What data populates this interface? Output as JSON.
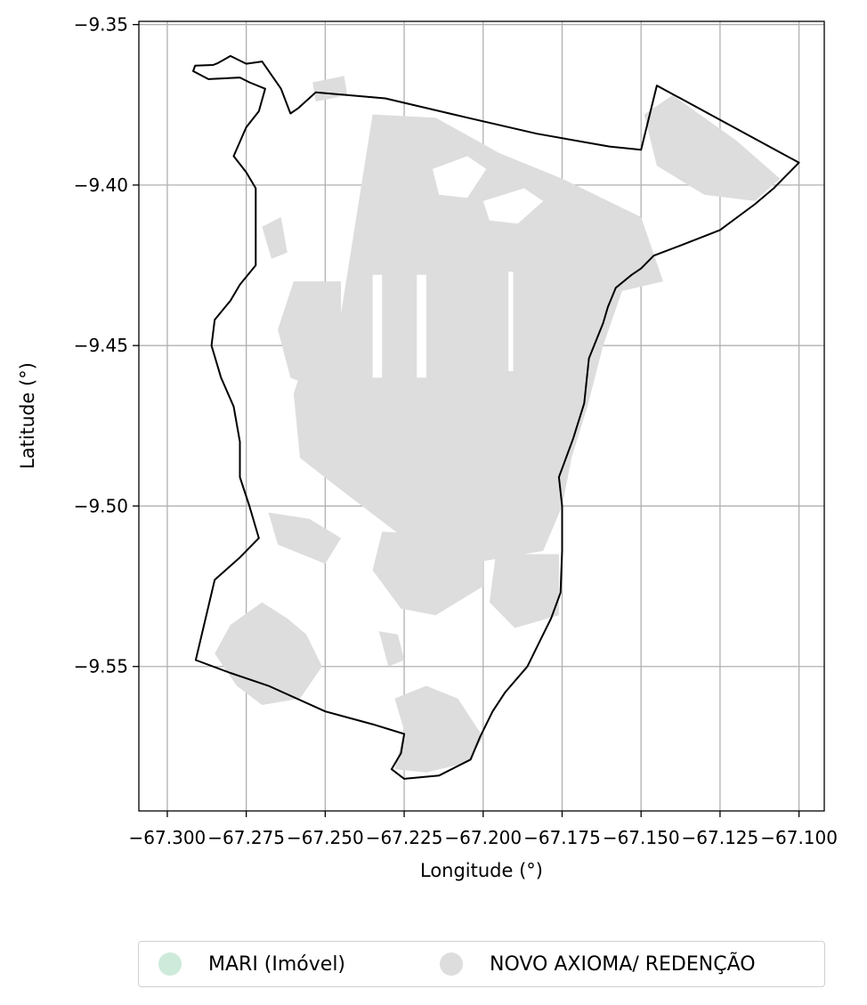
{
  "chart_data": {
    "type": "map",
    "xlabel": "Longitude (°)",
    "ylabel": "Latitude (°)",
    "xlim": [
      -67.309,
      -67.092
    ],
    "ylim": [
      -9.595,
      -9.349
    ],
    "xticks": [
      -67.3,
      -67.275,
      -67.25,
      -67.225,
      -67.2,
      -67.175,
      -67.15,
      -67.125,
      -67.1
    ],
    "xtick_labels": [
      "−67.300",
      "−67.275",
      "−67.250",
      "−67.225",
      "−67.200",
      "−67.175",
      "−67.150",
      "−67.125",
      "−67.100"
    ],
    "yticks": [
      -9.35,
      -9.4,
      -9.45,
      -9.5,
      -9.55
    ],
    "ytick_labels": [
      "−9.35",
      "−9.40",
      "−9.45",
      "−9.50",
      "−9.55"
    ],
    "grid": true,
    "legend_position": "bottom-center",
    "legend": [
      {
        "label": "MARI (Imóvel)",
        "color": "#cdeadb"
      },
      {
        "label": "NOVO AXIOMA/ REDENÇÃO",
        "color": "#dddddd"
      }
    ],
    "boundary_color": "#000000",
    "fill_color": "#dddddd",
    "boundary": [
      [
        -67.2918,
        -9.3645
      ],
      [
        -67.2912,
        -9.3628
      ],
      [
        -67.2855,
        -9.3626
      ],
      [
        -67.284,
        -9.362
      ],
      [
        -67.28,
        -9.3598
      ],
      [
        -67.275,
        -9.3622
      ],
      [
        -67.27,
        -9.3615
      ],
      [
        -67.264,
        -9.37
      ],
      [
        -67.261,
        -9.3777
      ],
      [
        -67.2585,
        -9.376
      ],
      [
        -67.253,
        -9.3711
      ],
      [
        -67.231,
        -9.373
      ],
      [
        -67.205,
        -9.379
      ],
      [
        -67.183,
        -9.384
      ],
      [
        -67.16,
        -9.388
      ],
      [
        -67.15,
        -9.389
      ],
      [
        -67.145,
        -9.369
      ],
      [
        -67.1,
        -9.393
      ],
      [
        -67.104,
        -9.397
      ],
      [
        -67.108,
        -9.401
      ],
      [
        -67.114,
        -9.406
      ],
      [
        -67.125,
        -9.414
      ],
      [
        -67.138,
        -9.419
      ],
      [
        -67.146,
        -9.422
      ],
      [
        -67.15,
        -9.426
      ],
      [
        -67.153,
        -9.428
      ],
      [
        -67.158,
        -9.432
      ],
      [
        -67.1605,
        -9.438
      ],
      [
        -67.162,
        -9.443
      ],
      [
        -67.1665,
        -9.454
      ],
      [
        -67.168,
        -9.468
      ],
      [
        -67.1715,
        -9.479
      ],
      [
        -67.176,
        -9.491
      ],
      [
        -67.175,
        -9.5
      ],
      [
        -67.175,
        -9.514
      ],
      [
        -67.1755,
        -9.527
      ],
      [
        -67.1785,
        -9.535
      ],
      [
        -67.182,
        -9.542
      ],
      [
        -67.186,
        -9.55
      ],
      [
        -67.193,
        -9.558
      ],
      [
        -67.197,
        -9.564
      ],
      [
        -67.201,
        -9.572
      ],
      [
        -67.204,
        -9.579
      ],
      [
        -67.214,
        -9.584
      ],
      [
        -67.225,
        -9.585
      ],
      [
        -67.229,
        -9.582
      ],
      [
        -67.226,
        -9.577
      ],
      [
        -67.225,
        -9.571
      ],
      [
        -67.235,
        -9.568
      ],
      [
        -67.25,
        -9.564
      ],
      [
        -67.268,
        -9.556
      ],
      [
        -67.28,
        -9.552
      ],
      [
        -67.291,
        -9.548
      ],
      [
        -67.285,
        -9.523
      ],
      [
        -67.277,
        -9.516
      ],
      [
        -67.271,
        -9.51
      ],
      [
        -67.274,
        -9.5
      ],
      [
        -67.277,
        -9.491
      ],
      [
        -67.277,
        -9.48
      ],
      [
        -67.279,
        -9.469
      ],
      [
        -67.283,
        -9.46
      ],
      [
        -67.286,
        -9.45
      ],
      [
        -67.285,
        -9.442
      ],
      [
        -67.28,
        -9.436
      ],
      [
        -67.277,
        -9.431
      ],
      [
        -67.272,
        -9.425
      ],
      [
        -67.272,
        -9.414
      ],
      [
        -67.272,
        -9.401
      ],
      [
        -67.275,
        -9.396
      ],
      [
        -67.279,
        -9.391
      ],
      [
        -67.275,
        -9.382
      ],
      [
        -67.271,
        -9.377
      ],
      [
        -67.269,
        -9.37
      ],
      [
        -67.274,
        -9.368
      ],
      [
        -67.277,
        -9.3665
      ],
      [
        -67.287,
        -9.367
      ],
      [
        -67.2918,
        -9.3645
      ]
    ],
    "areas": [
      [
        [
          -67.245,
          -9.44
        ],
        [
          -67.235,
          -9.378
        ],
        [
          -67.215,
          -9.379
        ],
        [
          -67.195,
          -9.39
        ],
        [
          -67.175,
          -9.398
        ],
        [
          -67.15,
          -9.41
        ],
        [
          -67.143,
          -9.43
        ],
        [
          -67.156,
          -9.433
        ],
        [
          -67.162,
          -9.45
        ],
        [
          -67.167,
          -9.469
        ],
        [
          -67.172,
          -9.485
        ],
        [
          -67.175,
          -9.5
        ],
        [
          -67.181,
          -9.514
        ],
        [
          -67.205,
          -9.518
        ],
        [
          -67.225,
          -9.51
        ],
        [
          -67.245,
          -9.495
        ],
        [
          -67.258,
          -9.485
        ],
        [
          -67.26,
          -9.465
        ],
        [
          -67.255,
          -9.45
        ]
      ],
      [
        [
          -67.26,
          -9.43
        ],
        [
          -67.245,
          -9.43
        ],
        [
          -67.245,
          -9.445
        ],
        [
          -67.252,
          -9.455
        ],
        [
          -67.256,
          -9.462
        ],
        [
          -67.261,
          -9.46
        ],
        [
          -67.265,
          -9.445
        ]
      ],
      [
        [
          -67.27,
          -9.413
        ],
        [
          -67.264,
          -9.41
        ],
        [
          -67.262,
          -9.421
        ],
        [
          -67.267,
          -9.423
        ]
      ],
      [
        [
          -67.149,
          -9.378
        ],
        [
          -67.145,
          -9.394
        ],
        [
          -67.13,
          -9.403
        ],
        [
          -67.114,
          -9.405
        ],
        [
          -67.106,
          -9.398
        ],
        [
          -67.12,
          -9.386
        ],
        [
          -67.14,
          -9.372
        ]
      ],
      [
        [
          -67.268,
          -9.502
        ],
        [
          -67.255,
          -9.504
        ],
        [
          -67.245,
          -9.51
        ],
        [
          -67.25,
          -9.518
        ],
        [
          -67.265,
          -9.512
        ]
      ],
      [
        [
          -67.232,
          -9.508
        ],
        [
          -67.215,
          -9.509
        ],
        [
          -67.2,
          -9.513
        ],
        [
          -67.2,
          -9.525
        ],
        [
          -67.215,
          -9.534
        ],
        [
          -67.226,
          -9.532
        ],
        [
          -67.235,
          -9.52
        ]
      ],
      [
        [
          -67.196,
          -9.515
        ],
        [
          -67.176,
          -9.515
        ],
        [
          -67.176,
          -9.534
        ],
        [
          -67.19,
          -9.538
        ],
        [
          -67.198,
          -9.53
        ]
      ],
      [
        [
          -67.27,
          -9.53
        ],
        [
          -67.262,
          -9.535
        ],
        [
          -67.256,
          -9.54
        ],
        [
          -67.251,
          -9.55
        ],
        [
          -67.258,
          -9.56
        ],
        [
          -67.27,
          -9.562
        ],
        [
          -67.278,
          -9.556
        ],
        [
          -67.285,
          -9.546
        ],
        [
          -67.28,
          -9.537
        ]
      ],
      [
        [
          -67.228,
          -9.56
        ],
        [
          -67.218,
          -9.556
        ],
        [
          -67.208,
          -9.56
        ],
        [
          -67.2,
          -9.572
        ],
        [
          -67.205,
          -9.58
        ],
        [
          -67.218,
          -9.583
        ],
        [
          -67.228,
          -9.582
        ],
        [
          -67.225,
          -9.57
        ]
      ],
      [
        [
          -67.233,
          -9.539
        ],
        [
          -67.227,
          -9.54
        ],
        [
          -67.225,
          -9.548
        ],
        [
          -67.23,
          -9.55
        ]
      ],
      [
        [
          -67.254,
          -9.368
        ],
        [
          -67.244,
          -9.366
        ],
        [
          -67.243,
          -9.372
        ],
        [
          -67.253,
          -9.374
        ]
      ]
    ],
    "clearings": [
      [
        [
          -67.221,
          -9.428
        ],
        [
          -67.218,
          -9.428
        ],
        [
          -67.218,
          -9.46
        ],
        [
          -67.221,
          -9.46
        ]
      ],
      [
        [
          -67.235,
          -9.428
        ],
        [
          -67.232,
          -9.428
        ],
        [
          -67.232,
          -9.46
        ],
        [
          -67.235,
          -9.46
        ]
      ],
      [
        [
          -67.192,
          -9.427
        ],
        [
          -67.1905,
          -9.427
        ],
        [
          -67.1905,
          -9.458
        ],
        [
          -67.192,
          -9.458
        ]
      ],
      [
        [
          -67.216,
          -9.395
        ],
        [
          -67.205,
          -9.391
        ],
        [
          -67.199,
          -9.395
        ],
        [
          -67.205,
          -9.404
        ],
        [
          -67.214,
          -9.403
        ]
      ],
      [
        [
          -67.2,
          -9.405
        ],
        [
          -67.187,
          -9.401
        ],
        [
          -67.181,
          -9.405
        ],
        [
          -67.189,
          -9.412
        ],
        [
          -67.198,
          -9.411
        ]
      ]
    ]
  }
}
